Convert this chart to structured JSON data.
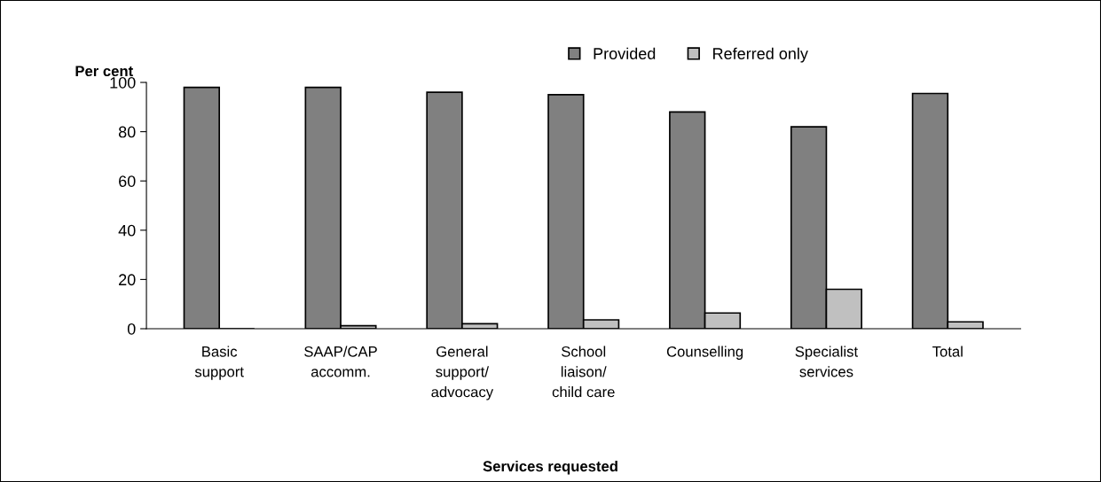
{
  "chart_data": {
    "type": "bar",
    "ylabel": "Per cent",
    "xlabel": "Services requested",
    "categories": [
      "Basic\nsupport",
      "SAAP/CAP\naccomm.",
      "General\nsupport/\nadvocacy",
      "School\nliaison/\nchild care",
      "Counselling",
      "Specialist\nservices",
      "Total"
    ],
    "series": [
      {
        "name": "Provided",
        "color": "#808080",
        "values": [
          98,
          98,
          96,
          95,
          88,
          82,
          95.5
        ]
      },
      {
        "name": "Referred only",
        "color": "#c0c0c0",
        "values": [
          null,
          1.2,
          2,
          3.6,
          6.4,
          16,
          2.8
        ]
      }
    ],
    "ylim": [
      0,
      100
    ],
    "yticks": [
      0,
      20,
      40,
      60,
      80,
      100
    ],
    "grid": false,
    "legend": "top"
  }
}
